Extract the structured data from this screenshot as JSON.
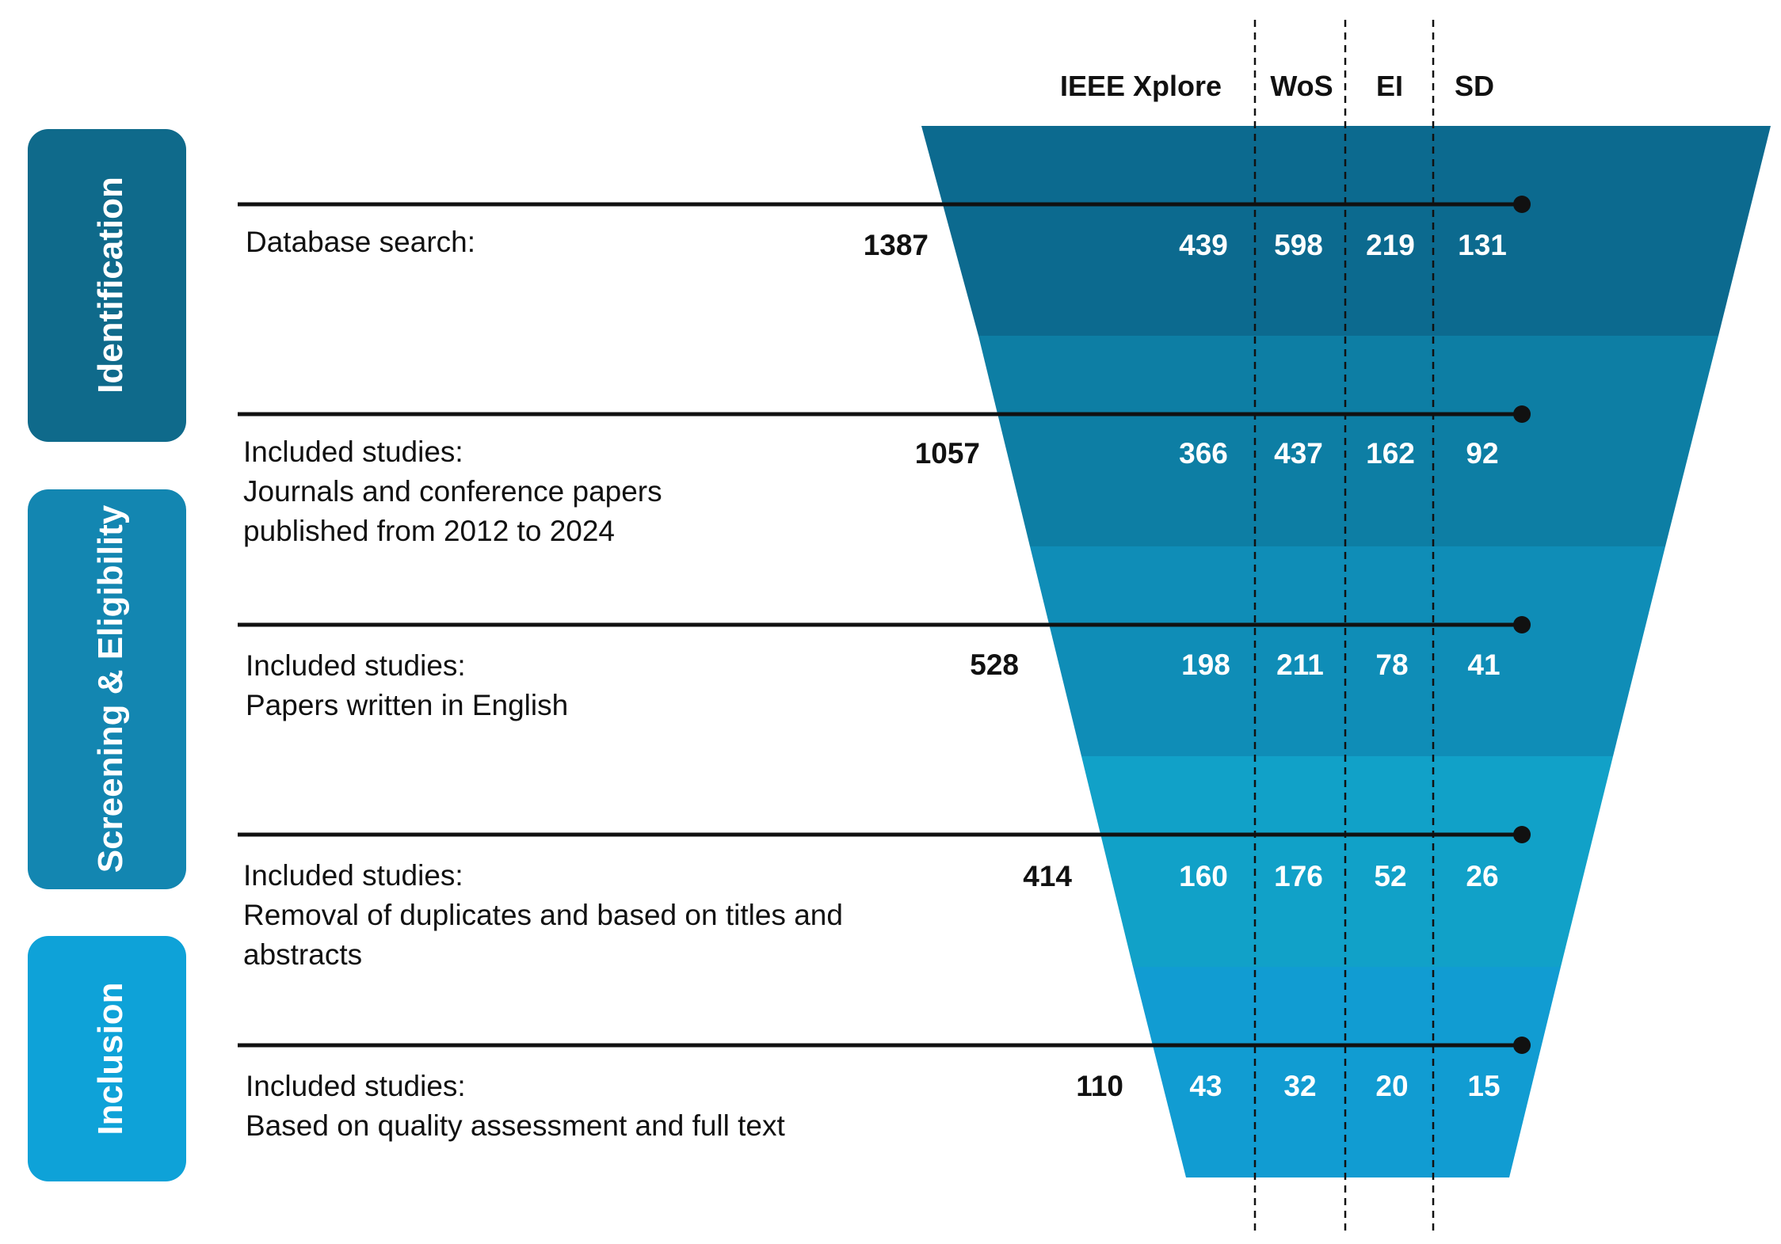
{
  "columns": {
    "ieee": "IEEE Xplore",
    "wos": "WoS",
    "ei": "EI",
    "sd": "SD"
  },
  "phases": {
    "identification": "Identification",
    "screening": "Screening & Eligibility",
    "inclusion": "Inclusion"
  },
  "stages": [
    {
      "line1": "Database search:",
      "line2": "",
      "line3": "",
      "total": "1387",
      "ieee": "439",
      "wos": "598",
      "ei": "219",
      "sd": "131"
    },
    {
      "line1": "Included studies:",
      "line2": "Journals and conference papers",
      "line3": "published from 2012 to 2024",
      "total": "1057",
      "ieee": "366",
      "wos": "437",
      "ei": "162",
      "sd": "92"
    },
    {
      "line1": "Included studies:",
      "line2": "Papers written in English",
      "line3": "",
      "total": "528",
      "ieee": "198",
      "wos": "211",
      "ei": "78",
      "sd": "41"
    },
    {
      "line1": "Included studies:",
      "line2": "Removal of duplicates and based on titles and",
      "line3": "abstracts",
      "total": "414",
      "ieee": "160",
      "wos": "176",
      "ei": "52",
      "sd": "26"
    },
    {
      "line1": "Included studies:",
      "line2": "Based on quality assessment and full text",
      "line3": "",
      "total": "110",
      "ieee": "43",
      "wos": "32",
      "ei": "20",
      "sd": "15"
    }
  ],
  "colors": {
    "band1": "#0c6a8f",
    "band2": "#0d7ea4",
    "band3": "#0f8db7",
    "band4": "#11a1c8",
    "band5": "#119cd2",
    "phase_identification": "#0f6a8b",
    "phase_screening": "#1386b1",
    "phase_inclusion": "#0ea2d8",
    "line": "#111111",
    "text": "#111111",
    "inner_text": "#ffffff"
  }
}
